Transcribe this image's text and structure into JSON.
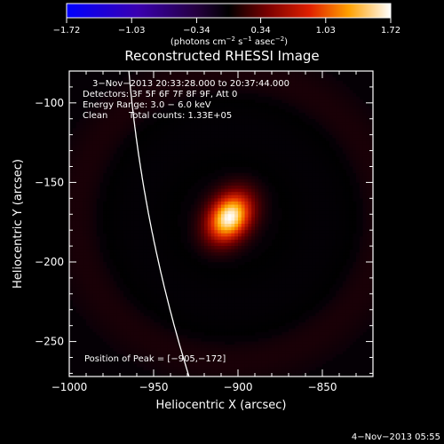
{
  "chart_data": {
    "type": "heatmap",
    "title": "Reconstructed RHESSI Image",
    "xlabel": "Heliocentric X (arcsec)",
    "ylabel": "Heliocentric Y (arcsec)",
    "xlim": [
      -1000,
      -820
    ],
    "ylim": [
      -272,
      -80
    ],
    "x_ticks": [
      -1000,
      -950,
      -900,
      -850
    ],
    "y_ticks": [
      -100,
      -150,
      -200,
      -250
    ],
    "x_tick_labels": [
      "−1000",
      "−950",
      "−900",
      "−850"
    ],
    "y_tick_labels": [
      "−100",
      "−150",
      "−200",
      "−250"
    ],
    "colorbar": {
      "range": [
        -1.72,
        1.72
      ],
      "ticks": [
        -1.72,
        -1.03,
        -0.34,
        0.34,
        1.03,
        1.72
      ],
      "tick_labels": [
        "−1.72",
        "−1.03",
        "−0.34",
        "0.34",
        "1.03",
        "1.72"
      ],
      "units_base": "(photons cm",
      "units_exp1": "−2",
      "units_mid": " s",
      "units_exp2": "−1",
      "units_mid2": " asec",
      "units_exp3": "−2",
      "units_end": ")"
    },
    "source": {
      "peak_x": -905,
      "peak_y": -172,
      "peak_value": 1.72,
      "sigma_major": 11,
      "sigma_minor": 8,
      "angle_deg": 60
    },
    "annotations": {
      "time_range": "3−Nov−2013 20:33:28.000 to 20:37:44.000",
      "detectors": "Detectors: 3F 5F 6F 7F 8F 9F, Att 0",
      "energy": "Energy Range: 3.0 − 6.0 keV",
      "clean_label": "Clean",
      "counts": "Total counts: 1.33E+05",
      "peak_label": "Position of Peak = ",
      "peak_value": "[−905,−172]"
    },
    "footer_date": "4−Nov−2013 05:55"
  },
  "colors": {
    "limb": "#ffffff",
    "axes": "#ffffff"
  }
}
